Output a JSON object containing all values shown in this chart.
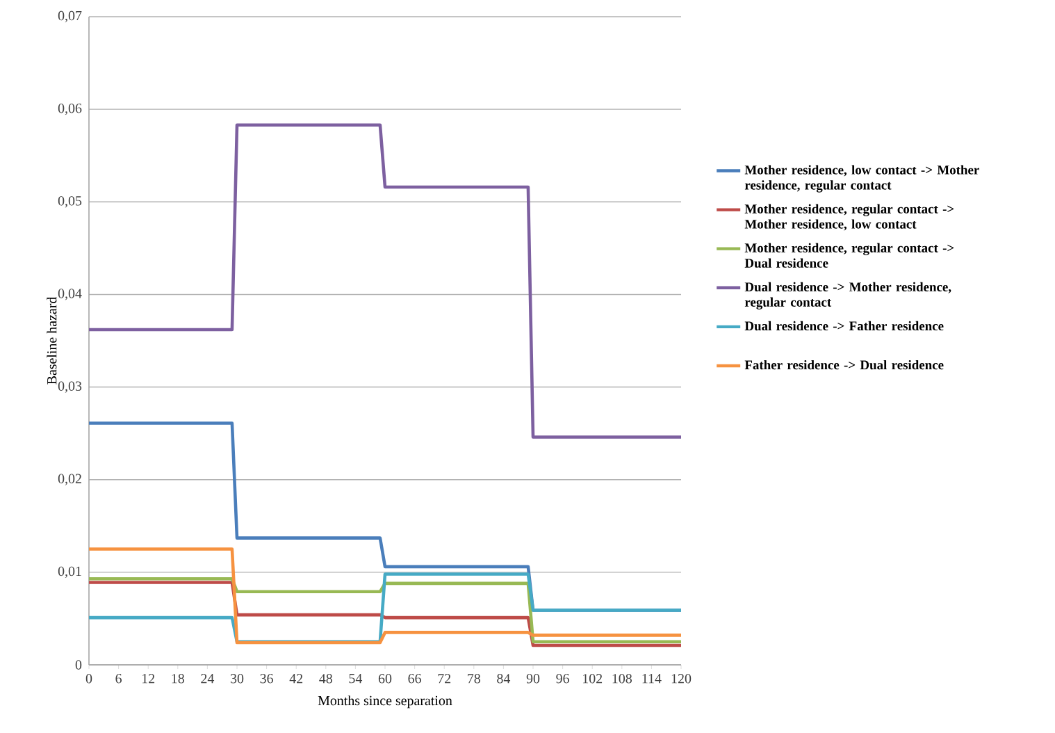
{
  "chart_data": {
    "type": "line",
    "xlabel": "Months since separation",
    "ylabel": "Baseline hazard",
    "x": [
      0,
      29,
      30,
      59,
      60,
      89,
      90,
      120
    ],
    "xlim": [
      0,
      120
    ],
    "xticks": [
      0,
      6,
      12,
      18,
      24,
      30,
      36,
      42,
      48,
      54,
      60,
      66,
      72,
      78,
      84,
      90,
      96,
      102,
      108,
      114,
      120
    ],
    "ylim": [
      0,
      0.07
    ],
    "yticks": [
      0,
      {
        "value": 0.01,
        "label": "0,01"
      },
      {
        "value": 0.02,
        "label": "0,02"
      },
      {
        "value": 0.03,
        "label": "0,03"
      },
      {
        "value": 0.04,
        "label": "0,04"
      },
      {
        "value": 0.05,
        "label": "0,05"
      },
      {
        "value": 0.06,
        "label": "0,06"
      },
      {
        "value": 0.07,
        "label": "0,07"
      }
    ],
    "grid": "y",
    "legend": "right",
    "marker": "none",
    "line_style": "solid",
    "series": [
      {
        "name": "Mother residence, low contact -> Mother residence, regular contact",
        "color": "#4a7ebb",
        "values": [
          0.0261,
          0.0261,
          0.0137,
          0.0137,
          0.0106,
          0.0106,
          0.0059,
          0.0059
        ]
      },
      {
        "name": "Mother residence, regular contact  -> Mother residence, low contact",
        "color": "#be4b48",
        "values": [
          0.0089,
          0.0089,
          0.0054,
          0.0054,
          0.0051,
          0.0051,
          0.0021,
          0.0021
        ]
      },
      {
        "name": "Mother residence, regular contact  -> Dual residence",
        "color": "#98b954",
        "values": [
          0.0093,
          0.0093,
          0.0079,
          0.0079,
          0.0088,
          0.0088,
          0.0025,
          0.0025
        ]
      },
      {
        "name": "Dual residence  -> Mother residence, regular contact",
        "color": "#7d60a0",
        "values": [
          0.0362,
          0.0362,
          0.0583,
          0.0583,
          0.0516,
          0.0516,
          0.0246,
          0.0246
        ]
      },
      {
        "name": "Dual residence  -> Father residence",
        "color": "#46aac5",
        "values": [
          0.0051,
          0.0051,
          0.0025,
          0.0025,
          0.0098,
          0.0098,
          0.0059,
          0.0059
        ]
      },
      {
        "name": "Father residence  -> Dual residence",
        "color": "#f69240",
        "values": [
          0.0125,
          0.0125,
          0.0024,
          0.0024,
          0.0035,
          0.0035,
          0.0032,
          0.0032
        ]
      }
    ]
  }
}
